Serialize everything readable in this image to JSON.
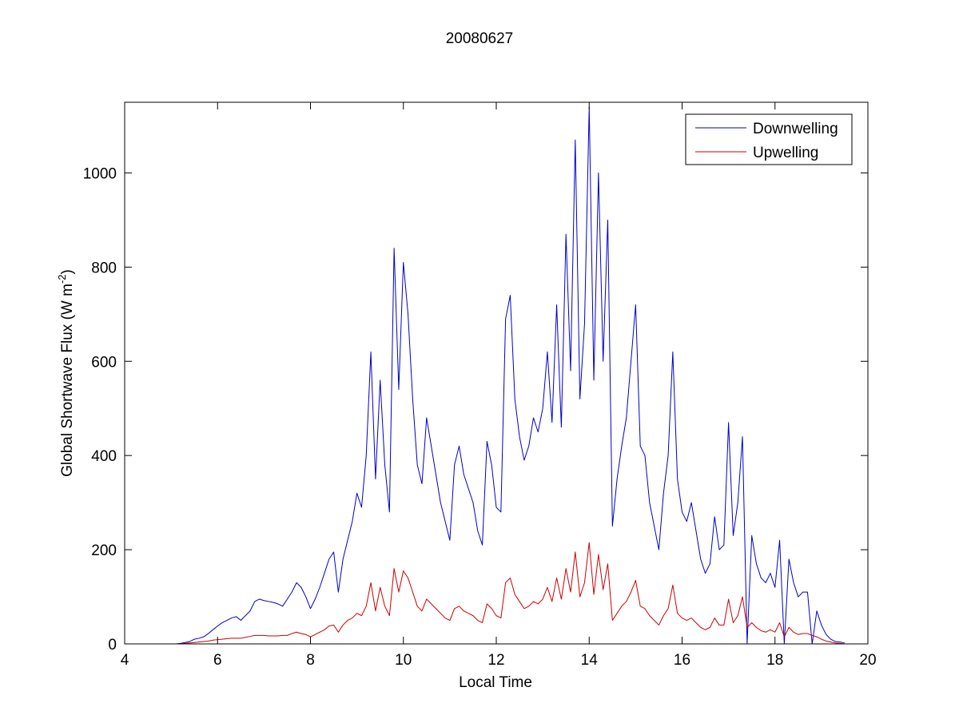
{
  "chart_data": {
    "type": "line",
    "title": "20080627",
    "x_label": "Local Time",
    "y_label_parts": [
      "Global Shortwave Flux (W m",
      "-2",
      ")"
    ],
    "xlim": [
      4,
      20
    ],
    "xticks": [
      4,
      6,
      8,
      10,
      12,
      14,
      16,
      18,
      20
    ],
    "ylim": [
      0,
      1150
    ],
    "yticks": [
      0,
      200,
      400,
      600,
      800,
      1000
    ],
    "legend": "top-right",
    "grid": false,
    "x": [
      4.2,
      4.3,
      4.7,
      5.0,
      5.1,
      5.2,
      5.3,
      5.4,
      5.5,
      5.6,
      5.7,
      5.8,
      5.9,
      6.0,
      6.1,
      6.2,
      6.3,
      6.4,
      6.5,
      6.6,
      6.7,
      6.8,
      6.9,
      7.0,
      7.1,
      7.2,
      7.3,
      7.4,
      7.5,
      7.6,
      7.7,
      7.8,
      7.9,
      8.0,
      8.1,
      8.2,
      8.3,
      8.4,
      8.5,
      8.6,
      8.7,
      8.8,
      8.9,
      9.0,
      9.1,
      9.2,
      9.3,
      9.4,
      9.5,
      9.6,
      9.7,
      9.8,
      9.9,
      10.0,
      10.1,
      10.2,
      10.3,
      10.4,
      10.5,
      10.6,
      10.7,
      10.8,
      10.9,
      11.0,
      11.1,
      11.2,
      11.3,
      11.4,
      11.5,
      11.6,
      11.7,
      11.8,
      11.9,
      12.0,
      12.1,
      12.2,
      12.3,
      12.4,
      12.5,
      12.6,
      12.7,
      12.8,
      12.9,
      13.0,
      13.1,
      13.2,
      13.3,
      13.4,
      13.5,
      13.6,
      13.7,
      13.8,
      13.9,
      14.0,
      14.1,
      14.2,
      14.3,
      14.4,
      14.5,
      14.6,
      14.7,
      14.8,
      14.9,
      15.0,
      15.1,
      15.2,
      15.3,
      15.4,
      15.5,
      15.6,
      15.7,
      15.8,
      15.9,
      16.0,
      16.1,
      16.2,
      16.3,
      16.4,
      16.5,
      16.6,
      16.7,
      16.8,
      16.9,
      17.0,
      17.1,
      17.2,
      17.3,
      17.4,
      17.5,
      17.6,
      17.7,
      17.8,
      17.9,
      18.0,
      18.1,
      18.2,
      18.3,
      18.4,
      18.5,
      18.6,
      18.7,
      18.8,
      18.9,
      19.0,
      19.1,
      19.2,
      19.3,
      19.4,
      19.5
    ],
    "series": [
      {
        "name": "Downwelling",
        "color": "#0000cc",
        "values": [
          0,
          0,
          null,
          0,
          0,
          1,
          3,
          5,
          10,
          12,
          15,
          22,
          30,
          38,
          45,
          50,
          55,
          58,
          50,
          60,
          70,
          90,
          95,
          92,
          90,
          88,
          85,
          80,
          95,
          110,
          130,
          120,
          100,
          75,
          95,
          120,
          150,
          180,
          195,
          110,
          180,
          220,
          260,
          320,
          290,
          400,
          620,
          350,
          560,
          380,
          280,
          840,
          540,
          810,
          700,
          520,
          380,
          340,
          480,
          420,
          360,
          300,
          260,
          220,
          380,
          420,
          360,
          330,
          300,
          240,
          210,
          430,
          380,
          290,
          280,
          690,
          740,
          520,
          440,
          390,
          420,
          480,
          450,
          500,
          620,
          470,
          720,
          460,
          870,
          580,
          1070,
          520,
          680,
          1140,
          560,
          1000,
          600,
          900,
          250,
          350,
          420,
          480,
          600,
          720,
          420,
          400,
          300,
          250,
          200,
          320,
          400,
          620,
          350,
          280,
          260,
          300,
          240,
          180,
          150,
          170,
          270,
          200,
          210,
          470,
          230,
          300,
          440,
          0,
          230,
          170,
          140,
          130,
          150,
          120,
          220,
          0,
          180,
          130,
          100,
          110,
          110,
          0,
          70,
          40,
          20,
          10,
          5,
          4,
          2
        ]
      },
      {
        "name": "Upwelling",
        "color": "#cc0000",
        "values": [
          0,
          0,
          null,
          0,
          0,
          0,
          1,
          2,
          3,
          4,
          5,
          6,
          8,
          9,
          10,
          11,
          12,
          12,
          12,
          14,
          16,
          18,
          18,
          18,
          17,
          17,
          17,
          18,
          18,
          22,
          25,
          22,
          20,
          15,
          20,
          25,
          30,
          38,
          40,
          25,
          40,
          50,
          55,
          65,
          60,
          80,
          130,
          70,
          120,
          80,
          60,
          160,
          110,
          155,
          140,
          110,
          80,
          70,
          95,
          85,
          75,
          65,
          55,
          50,
          75,
          80,
          70,
          65,
          60,
          50,
          45,
          85,
          75,
          60,
          55,
          130,
          140,
          105,
          90,
          75,
          80,
          90,
          85,
          95,
          120,
          90,
          140,
          95,
          160,
          110,
          195,
          100,
          130,
          215,
          105,
          190,
          115,
          170,
          50,
          65,
          80,
          90,
          110,
          135,
          80,
          75,
          60,
          50,
          40,
          60,
          75,
          125,
          65,
          55,
          50,
          55,
          45,
          35,
          30,
          35,
          55,
          40,
          40,
          95,
          45,
          60,
          100,
          35,
          45,
          35,
          28,
          25,
          30,
          25,
          45,
          15,
          35,
          25,
          20,
          22,
          22,
          18,
          15,
          10,
          6,
          4,
          2,
          1,
          0
        ]
      }
    ]
  }
}
